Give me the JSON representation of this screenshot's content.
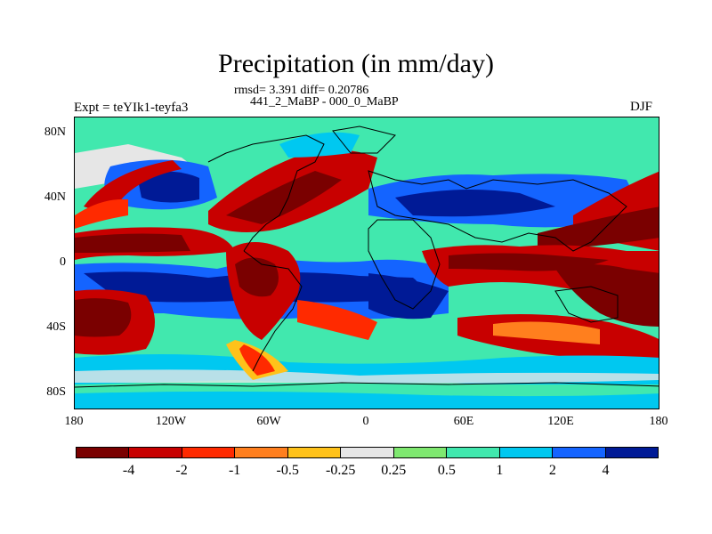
{
  "title": "Precipitation (in mm/day)",
  "subtitle_rmsd": "rmsd= 3.391 diff= 0.20786",
  "subtitle_exp": "441_2_MaBP - 000_0_MaBP",
  "expt_label": "Expt = teYIk1-teyfa3",
  "season_label": "DJF",
  "y_ticks": [
    "80N",
    "40N",
    "0",
    "40S",
    "80S"
  ],
  "x_ticks": [
    "180",
    "120W",
    "60W",
    "0",
    "60E",
    "120E",
    "180"
  ],
  "colorbar": {
    "colors": [
      "#7a0000",
      "#c80000",
      "#ff2a00",
      "#ff7f1e",
      "#ffc21a",
      "#e6e6e6",
      "#7fe870",
      "#41e8ae",
      "#00c8f0",
      "#1464ff",
      "#001a96"
    ],
    "labels": [
      "-4",
      "-2",
      "-1",
      "-0.5",
      "-0.25",
      "0.25",
      "0.5",
      "1",
      "2",
      "4"
    ]
  }
}
